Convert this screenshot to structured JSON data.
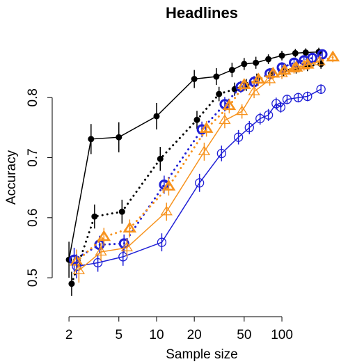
{
  "chart_data": {
    "type": "line",
    "title": "Headlines",
    "x_label": "Sample size",
    "y_label": "Accuracy",
    "log_x": true,
    "xlim": [
      1.67,
      278
    ],
    "ylim": [
      0.441,
      0.893
    ],
    "xticks": [
      2,
      5,
      10,
      20,
      50,
      100
    ],
    "yticks": [
      0.5,
      0.6,
      0.7,
      0.8
    ],
    "series": [
      {
        "color": "#000000",
        "line": "solid",
        "marker": "dot",
        "x": [
          2,
          3,
          5,
          10,
          20,
          30,
          40,
          50,
          62,
          78,
          100,
          128,
          155,
          197
        ],
        "values": [
          0.53,
          0.731,
          0.734,
          0.769,
          0.831,
          0.835,
          0.846,
          0.856,
          0.858,
          0.864,
          0.87,
          0.874,
          0.875,
          0.876
        ],
        "errors": [
          0.03,
          0.025,
          0.025,
          0.022,
          0.015,
          0.014,
          0.012,
          0.01,
          0.01,
          0.008,
          0.008,
          0.007,
          0.007,
          0.007
        ]
      },
      {
        "color": "#000000",
        "line": "dotted",
        "marker": "dot",
        "x": [
          2.1,
          3.2,
          5.3,
          10.7,
          21,
          31.5,
          42,
          52,
          63,
          82,
          103,
          130,
          160,
          205
        ],
        "values": [
          0.49,
          0.602,
          0.61,
          0.698,
          0.763,
          0.806,
          0.814,
          0.821,
          0.83,
          0.84,
          0.845,
          0.848,
          0.852,
          0.856
        ],
        "errors": [
          0.02,
          0.02,
          0.02,
          0.02,
          0.015,
          0.012,
          0.011,
          0.01,
          0.01,
          0.009,
          0.009,
          0.008,
          0.008,
          0.008
        ]
      },
      {
        "color": "#1f1fd6",
        "line": "dotted",
        "marker": "circle-thick",
        "x": [
          2.2,
          3.5,
          5.5,
          11.5,
          23,
          35,
          47,
          60,
          80,
          100,
          125,
          150,
          175,
          210
        ],
        "values": [
          0.53,
          0.555,
          0.557,
          0.655,
          0.747,
          0.789,
          0.818,
          0.826,
          0.84,
          0.85,
          0.858,
          0.862,
          0.866,
          0.872
        ],
        "errors": [
          0.02,
          0.015,
          0.015,
          0.015,
          0.013,
          0.012,
          0.01,
          0.01,
          0.009,
          0.009,
          0.008,
          0.008,
          0.008,
          0.008
        ]
      },
      {
        "color": "#f7931e",
        "line": "dotted",
        "marker": "triangle-thick",
        "x": [
          2.3,
          3.8,
          6.1,
          12.5,
          25,
          38,
          50,
          65,
          85,
          105,
          130,
          160,
          255
        ],
        "values": [
          0.527,
          0.568,
          0.582,
          0.652,
          0.748,
          0.786,
          0.821,
          0.83,
          0.84,
          0.845,
          0.85,
          0.855,
          0.867
        ],
        "errors": [
          0.02,
          0.015,
          0.015,
          0.015,
          0.013,
          0.012,
          0.01,
          0.01,
          0.009,
          0.009,
          0.008,
          0.008,
          0.008
        ]
      },
      {
        "color": "#1f1fd6",
        "line": "solid",
        "marker": "circle",
        "x": [
          2.3,
          3.4,
          5.4,
          11,
          22,
          33,
          45,
          55,
          67,
          78,
          90,
          98,
          110,
          135,
          160,
          205
        ],
        "values": [
          0.519,
          0.525,
          0.535,
          0.559,
          0.658,
          0.707,
          0.734,
          0.75,
          0.765,
          0.771,
          0.79,
          0.784,
          0.797,
          0.8,
          0.802,
          0.814
        ],
        "errors": [
          0.02,
          0.015,
          0.015,
          0.015,
          0.015,
          0.013,
          0.012,
          0.011,
          0.01,
          0.01,
          0.01,
          0.009,
          0.008,
          0.008,
          0.008,
          0.008
        ]
      },
      {
        "color": "#f7931e",
        "line": "solid",
        "marker": "triangle",
        "x": [
          2.4,
          3.6,
          5.8,
          12,
          24,
          35,
          48,
          60,
          80,
          100,
          125,
          150,
          200
        ],
        "values": [
          0.512,
          0.543,
          0.55,
          0.61,
          0.71,
          0.762,
          0.777,
          0.81,
          0.83,
          0.84,
          0.848,
          0.853,
          0.86
        ],
        "errors": [
          0.02,
          0.015,
          0.015,
          0.015,
          0.015,
          0.013,
          0.012,
          0.011,
          0.01,
          0.009,
          0.008,
          0.008,
          0.008
        ]
      }
    ]
  }
}
